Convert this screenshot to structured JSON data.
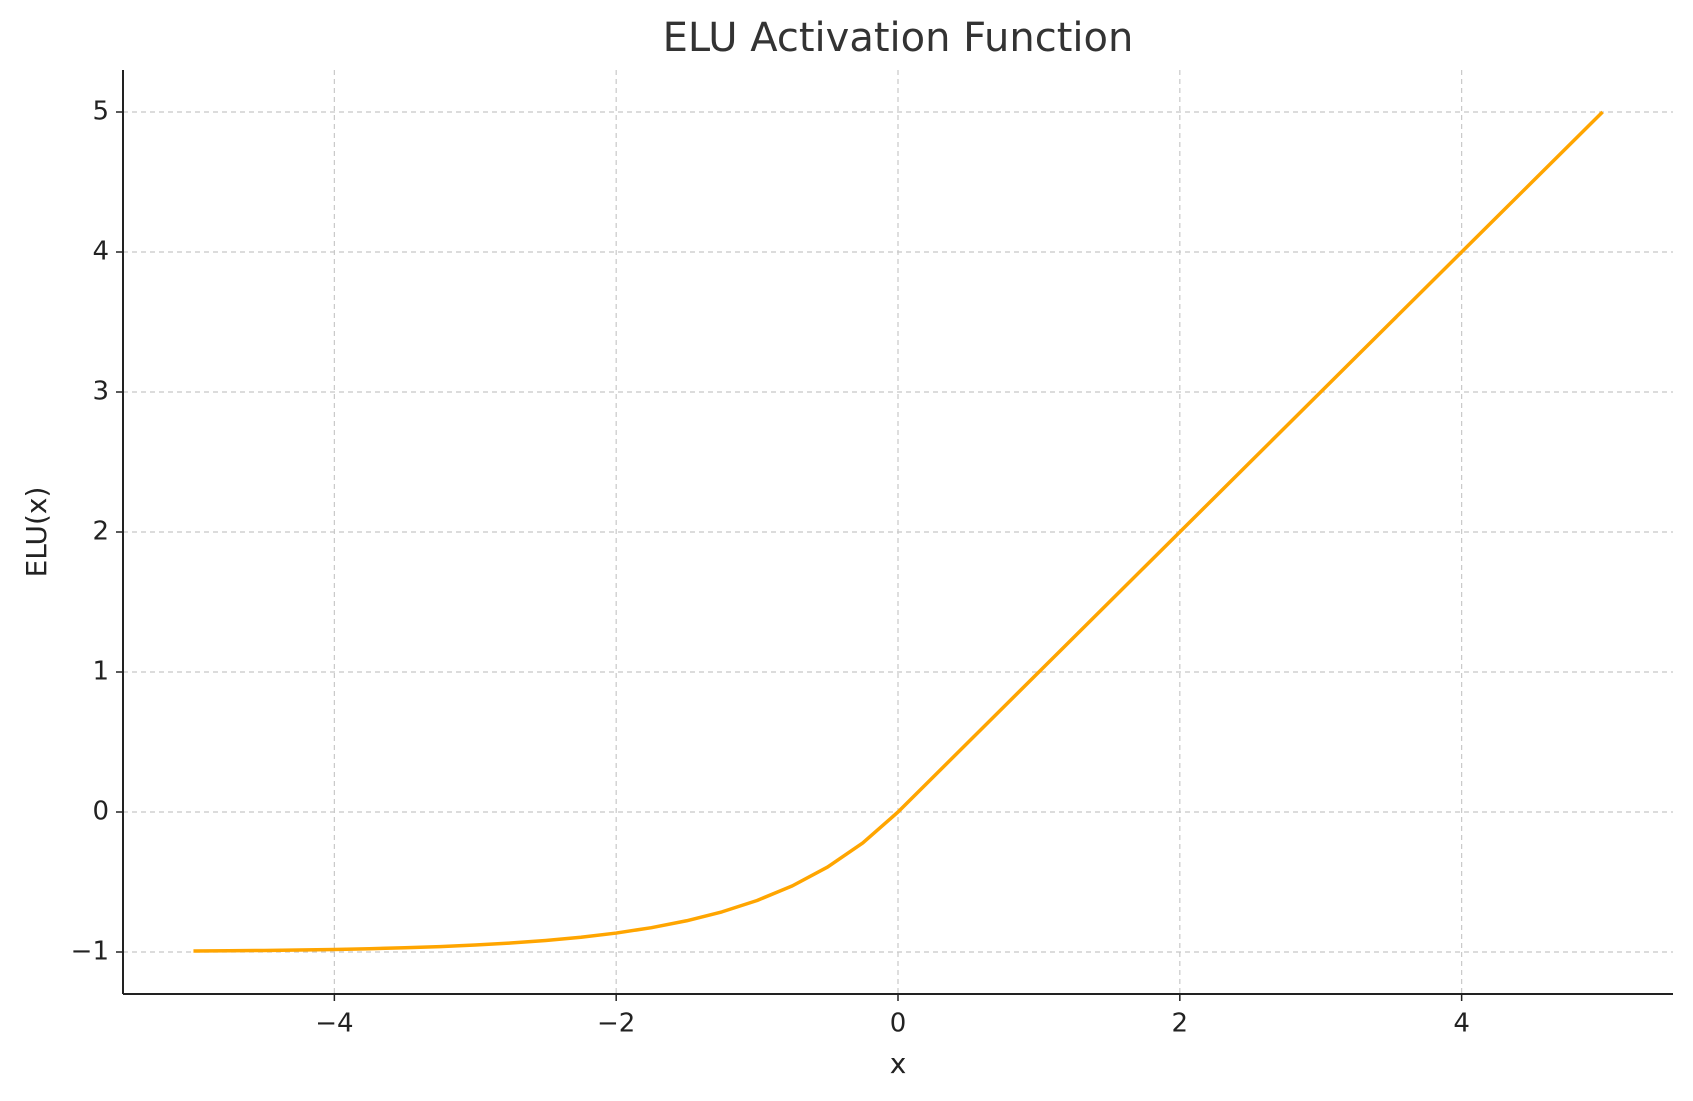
{
  "chart_data": {
    "type": "line",
    "title": "ELU Activation Function",
    "x_label": "x",
    "y_label": "ELU(x)",
    "x": [
      -5,
      -4.75,
      -4.5,
      -4.25,
      -4,
      -3.75,
      -3.5,
      -3.25,
      -3,
      -2.75,
      -2.5,
      -2.25,
      -2,
      -1.75,
      -1.5,
      -1.25,
      -1,
      -0.75,
      -0.5,
      -0.25,
      0,
      0.25,
      0.5,
      0.75,
      1,
      1.25,
      1.5,
      1.75,
      2,
      2.25,
      2.5,
      2.75,
      3,
      3.25,
      3.5,
      3.75,
      4,
      4.25,
      4.5,
      4.75,
      5
    ],
    "values": [
      -0.9933,
      -0.9913,
      -0.9889,
      -0.9857,
      -0.9817,
      -0.9765,
      -0.9698,
      -0.9612,
      -0.9502,
      -0.9361,
      -0.9179,
      -0.8946,
      -0.8647,
      -0.8262,
      -0.7769,
      -0.7135,
      -0.6321,
      -0.5276,
      -0.3935,
      -0.2212,
      0,
      0.25,
      0.5,
      0.75,
      1,
      1.25,
      1.5,
      1.75,
      2,
      2.25,
      2.5,
      2.75,
      3,
      3.25,
      3.5,
      3.75,
      4,
      4.25,
      4.5,
      4.75,
      5
    ],
    "color": "#FFA500",
    "xlim": [
      -5.5,
      5.5
    ],
    "ylim": [
      -1.3,
      5.3
    ],
    "xticks": [
      {
        "value": -4,
        "label": "−4"
      },
      {
        "value": -2,
        "label": "−2"
      },
      0,
      2,
      4
    ],
    "yticks": [
      {
        "value": -1,
        "label": "−1"
      },
      0,
      1,
      2,
      3,
      4,
      5
    ],
    "grid": true
  }
}
